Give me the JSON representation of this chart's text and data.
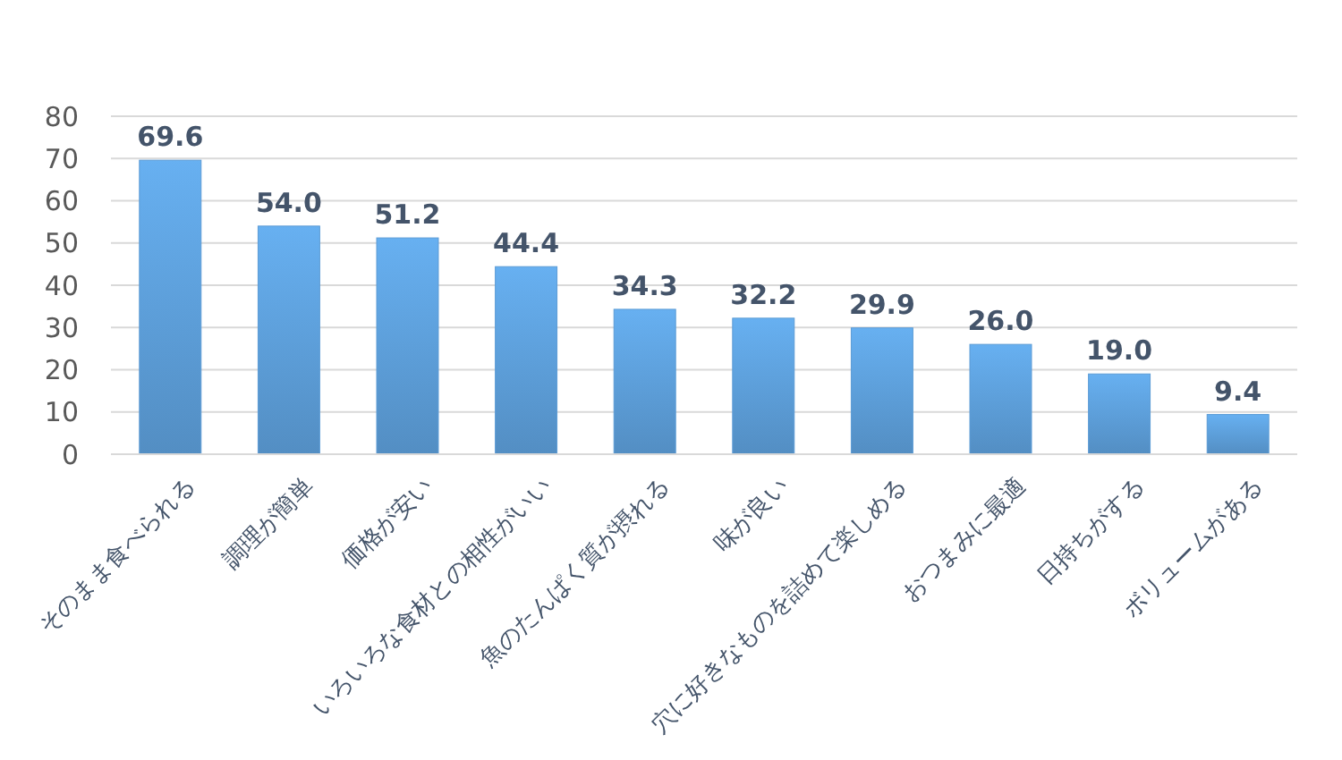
{
  "chart_data": {
    "type": "bar",
    "categories": [
      "そのまま食べられる",
      "調理が簡単",
      "価格が安い",
      "いろいろな食材との相性がいい",
      "魚のたんぱく質が摂れる",
      "味が良い",
      "穴に好きなものを詰めて楽しめる",
      "おつまみに最適",
      "日持ちがする",
      "ボリュームがある"
    ],
    "values": [
      69.6,
      54.0,
      51.2,
      44.4,
      34.3,
      32.2,
      29.9,
      26.0,
      19.0,
      9.4
    ],
    "value_labels": [
      "69.6",
      "54.0",
      "51.2",
      "44.4",
      "34.3",
      "32.2",
      "29.9",
      "26.0",
      "19.0",
      "9.4"
    ],
    "color": "#5b9bd5",
    "ylim": [
      0,
      80
    ],
    "yticks": [
      0,
      10,
      20,
      30,
      40,
      50,
      60,
      70,
      80
    ],
    "grid": "y"
  }
}
